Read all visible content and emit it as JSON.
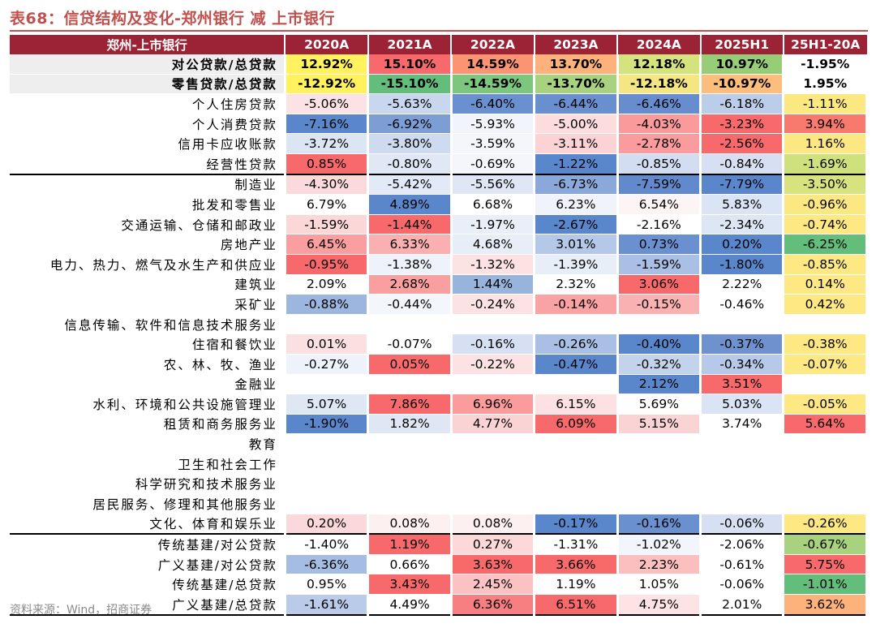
{
  "title": "表68：信贷结构及变化-郑州银行 减 上市银行",
  "source": "资料来源：Wind，招商证券",
  "chart_data": {
    "type": "table",
    "columns": [
      "郑州-上市银行",
      "2020A",
      "2021A",
      "2022A",
      "2023A",
      "2024A",
      "2025H1",
      "25H1-20A"
    ],
    "rows": [
      {
        "label": "对公贷款/总贷款",
        "values": [
          "12.92%",
          "15.10%",
          "14.59%",
          "13.70%",
          "12.18%",
          "10.97%",
          "-1.95%"
        ],
        "bg": [
          "#fff25e",
          "#f8696b",
          "#fa9473",
          "#fcb27a",
          "#d4e37e",
          "#98cd78",
          "#ffffff"
        ],
        "bold": true,
        "header_gray": true
      },
      {
        "label": "零售贷款/总贷款",
        "values": [
          "-12.92%",
          "-15.10%",
          "-14.59%",
          "-13.70%",
          "-12.18%",
          "-10.97%",
          "1.95%"
        ],
        "bg": [
          "#fff25e",
          "#63be7b",
          "#7dc67d",
          "#a8d27f",
          "#f5e684",
          "#fdbd7c",
          "#ffffff"
        ],
        "bold": true,
        "header_gray": true
      },
      {
        "label": "个人住房贷款",
        "values": [
          "-5.06%",
          "-5.63%",
          "-6.40%",
          "-6.44%",
          "-6.46%",
          "-6.18%",
          "-1.11%"
        ],
        "bg": [
          "#fbe2e4",
          "#c9d7ee",
          "#6b90cf",
          "#6a8fce",
          "#688dce",
          "#bccde9",
          "#fbe880"
        ]
      },
      {
        "label": "个人消费贷款",
        "values": [
          "-7.16%",
          "-6.92%",
          "-5.93%",
          "-5.00%",
          "-4.03%",
          "-3.23%",
          "3.94%"
        ],
        "bg": [
          "#5a86cb",
          "#7c9ed5",
          "#f2f4fb",
          "#fcdcdd",
          "#fa9a9b",
          "#f8696b",
          "#f8796d"
        ]
      },
      {
        "label": "信用卡应收账款",
        "values": [
          "-3.72%",
          "-3.80%",
          "-3.59%",
          "-3.11%",
          "-2.78%",
          "-2.56%",
          "1.16%"
        ],
        "bg": [
          "#dce5f4",
          "#cddaf0",
          "#f4f6fc",
          "#fcd3d4",
          "#fa9c9d",
          "#f8696b",
          "#fde783"
        ]
      },
      {
        "label": "经营性贷款",
        "values": [
          "0.85%",
          "-0.80%",
          "-0.69%",
          "-1.22%",
          "-0.85%",
          "-0.84%",
          "-1.69%"
        ],
        "bg": [
          "#f8696b",
          "#e0e8f5",
          "#f4f6fc",
          "#5a86cb",
          "#d2ddf1",
          "#d6e0f2",
          "#cfe17d"
        ]
      },
      {
        "label": "制造业",
        "values": [
          "-4.30%",
          "-5.42%",
          "-5.56%",
          "-6.73%",
          "-7.59%",
          "-7.79%",
          "-3.50%"
        ],
        "bg": [
          "#fadadb",
          "#e3eaf7",
          "#dfe7f5",
          "#8aa8d9",
          "#6189cc",
          "#5a86cb",
          "#d6e37f"
        ],
        "sep": true
      },
      {
        "label": "批发和零售业",
        "values": [
          "6.79%",
          "4.89%",
          "6.68%",
          "6.23%",
          "6.54%",
          "5.83%",
          "-0.96%"
        ],
        "bg": [
          "#ffffff",
          "#5a86cb",
          "#ffffff",
          "#f0f3fa",
          "#fcf4f5",
          "#dbe4f4",
          "#fbe883"
        ]
      },
      {
        "label": "交通运输、仓储和邮政业",
        "values": [
          "-1.59%",
          "-1.44%",
          "-1.97%",
          "-2.67%",
          "-2.16%",
          "-2.34%",
          "-0.74%"
        ],
        "bg": [
          "#fbd7d8",
          "#f8696b",
          "#e9eef8",
          "#5a86cb",
          "#ffffff",
          "#dde6f4",
          "#fde884"
        ]
      },
      {
        "label": "房地产业",
        "values": [
          "6.45%",
          "6.33%",
          "4.68%",
          "3.01%",
          "0.73%",
          "0.20%",
          "-6.25%"
        ],
        "bg": [
          "#fa9e9f",
          "#fab0b1",
          "#e8eef8",
          "#b5c8e8",
          "#6b90cf",
          "#5a86cb",
          "#63be7b"
        ]
      },
      {
        "label": "电力、热力、燃气及水生产和供应业",
        "values": [
          "-0.95%",
          "-1.38%",
          "-1.32%",
          "-1.39%",
          "-1.59%",
          "-1.80%",
          "-0.85%"
        ],
        "bg": [
          "#f8696b",
          "#eef2fa",
          "#fde2e3",
          "#e8eef8",
          "#a9bfe4",
          "#5a86cb",
          "#fde884"
        ]
      },
      {
        "label": "建筑业",
        "values": [
          "2.09%",
          "2.68%",
          "1.44%",
          "2.32%",
          "3.06%",
          "2.22%",
          "0.14%"
        ],
        "bg": [
          "#ffffff",
          "#f99fa0",
          "#98b4dd",
          "#ffffff",
          "#f8696b",
          "#ffffff",
          "#fde884"
        ]
      },
      {
        "label": "采矿业",
        "values": [
          "-0.88%",
          "-0.44%",
          "-0.24%",
          "-0.14%",
          "-0.15%",
          "-0.46%",
          "0.42%"
        ],
        "bg": [
          "#9cb6df",
          "#f3f6fc",
          "#fce2e3",
          "#f9a3a4",
          "#f9b1b2",
          "#ffffff",
          "#fde884"
        ]
      },
      {
        "label": "信息传输、软件和信息技术服务业",
        "values": [
          "",
          "",
          "",
          "",
          "",
          "",
          ""
        ],
        "bg": [
          "#ffffff",
          "#ffffff",
          "#ffffff",
          "#ffffff",
          "#ffffff",
          "#ffffff",
          "#ffffff"
        ]
      },
      {
        "label": "住宿和餐饮业",
        "values": [
          "0.01%",
          "-0.07%",
          "-0.16%",
          "-0.26%",
          "-0.40%",
          "-0.37%",
          "-0.38%"
        ],
        "bg": [
          "#fbe0e1",
          "#ffffff",
          "#d6e0f2",
          "#a9c0e4",
          "#5a86cb",
          "#6f92cf",
          "#fde884"
        ]
      },
      {
        "label": "农、林、牧、渔业",
        "values": [
          "-0.27%",
          "0.05%",
          "-0.22%",
          "-0.47%",
          "-0.32%",
          "-0.34%",
          "-0.07%"
        ],
        "bg": [
          "#eef2fa",
          "#f8696b",
          "#fce2e3",
          "#5a86cb",
          "#c3d3ec",
          "#b7c9e8",
          "#fde884"
        ]
      },
      {
        "label": "金融业",
        "values": [
          "",
          "",
          "",
          "",
          "2.12%",
          "3.51%",
          ""
        ],
        "bg": [
          "#ffffff",
          "#ffffff",
          "#ffffff",
          "#ffffff",
          "#5a86cb",
          "#f8696b",
          "#ffffff"
        ]
      },
      {
        "label": "水利、环境和公共设施管理业",
        "values": [
          "5.07%",
          "7.86%",
          "6.96%",
          "6.15%",
          "5.69%",
          "5.03%",
          "-0.05%"
        ],
        "bg": [
          "#dfe7f5",
          "#f8696b",
          "#fa9b9c",
          "#fde0e1",
          "#ffffff",
          "#dbe4f4",
          "#fde884"
        ]
      },
      {
        "label": "租赁和商务服务业",
        "values": [
          "-1.90%",
          "1.82%",
          "4.77%",
          "6.09%",
          "5.15%",
          "3.74%",
          "5.64%"
        ],
        "bg": [
          "#5a86cb",
          "#dfe7f5",
          "#fcd3d4",
          "#f8696b",
          "#fad4d5",
          "#ffffff",
          "#f8696b"
        ]
      },
      {
        "label": "教育",
        "values": [
          "",
          "",
          "",
          "",
          "",
          "",
          ""
        ],
        "bg": [
          "#ffffff",
          "#ffffff",
          "#ffffff",
          "#ffffff",
          "#ffffff",
          "#ffffff",
          "#ffffff"
        ]
      },
      {
        "label": "卫生和社会工作",
        "values": [
          "",
          "",
          "",
          "",
          "",
          "",
          ""
        ],
        "bg": [
          "#ffffff",
          "#ffffff",
          "#ffffff",
          "#ffffff",
          "#ffffff",
          "#ffffff",
          "#ffffff"
        ]
      },
      {
        "label": "科学研究和技术服务业",
        "values": [
          "",
          "",
          "",
          "",
          "",
          "",
          ""
        ],
        "bg": [
          "#ffffff",
          "#ffffff",
          "#ffffff",
          "#ffffff",
          "#ffffff",
          "#ffffff",
          "#ffffff"
        ]
      },
      {
        "label": "居民服务、修理和其他服务业",
        "values": [
          "",
          "",
          "",
          "",
          "",
          "",
          ""
        ],
        "bg": [
          "#ffffff",
          "#ffffff",
          "#ffffff",
          "#ffffff",
          "#ffffff",
          "#ffffff",
          "#ffffff"
        ]
      },
      {
        "label": "文化、体育和娱乐业",
        "values": [
          "0.20%",
          "0.08%",
          "0.08%",
          "-0.17%",
          "-0.16%",
          "-0.06%",
          "-0.26%"
        ],
        "bg": [
          "#fbd9da",
          "#fdf0f1",
          "#fdf0f1",
          "#5a86cb",
          "#6b90cf",
          "#d6e0f2",
          "#fde884"
        ]
      },
      {
        "label": "传统基建/对公贷款",
        "values": [
          "-1.40%",
          "1.19%",
          "0.27%",
          "-1.31%",
          "-1.02%",
          "-2.06%",
          "-0.67%"
        ],
        "bg": [
          "#ffffff",
          "#f8696b",
          "#fcd8d9",
          "#ffffff",
          "#f2f5fb",
          "#ffffff",
          "#a9d27f"
        ],
        "sep": true
      },
      {
        "label": "广义基建/对公贷款",
        "values": [
          "-6.36%",
          "0.66%",
          "3.63%",
          "3.66%",
          "2.23%",
          "-0.61%",
          "5.75%"
        ],
        "bg": [
          "#a6bde3",
          "#ffffff",
          "#f8696b",
          "#f8696b",
          "#fbbfc0",
          "#ffffff",
          "#f8696b"
        ]
      },
      {
        "label": "传统基建/总贷款",
        "values": [
          "0.95%",
          "3.43%",
          "2.45%",
          "1.19%",
          "1.05%",
          "-0.06%",
          "-1.01%"
        ],
        "bg": [
          "#ffffff",
          "#f8696b",
          "#fbc2c3",
          "#ffffff",
          "#ffffff",
          "#ffffff",
          "#63be7b"
        ]
      },
      {
        "label": "广义基建/总贷款",
        "values": [
          "-1.61%",
          "4.49%",
          "6.36%",
          "6.51%",
          "4.75%",
          "2.01%",
          "3.62%"
        ],
        "bg": [
          "#b9cbe9",
          "#ffffff",
          "#f87f81",
          "#f8696b",
          "#fde3e4",
          "#ffffff",
          "#fcb27a"
        ]
      }
    ]
  }
}
